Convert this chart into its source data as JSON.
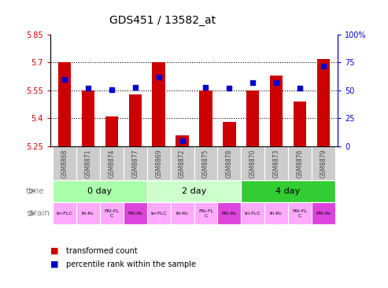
{
  "title": "GDS451 / 13582_at",
  "samples": [
    "GSM8868",
    "GSM8871",
    "GSM8874",
    "GSM8877",
    "GSM8869",
    "GSM8872",
    "GSM8875",
    "GSM8878",
    "GSM8870",
    "GSM8873",
    "GSM8876",
    "GSM8879"
  ],
  "transformed_counts": [
    5.7,
    5.55,
    5.41,
    5.53,
    5.7,
    5.31,
    5.55,
    5.38,
    5.55,
    5.63,
    5.49,
    5.72
  ],
  "percentile_ranks": [
    60,
    52,
    51,
    53,
    62,
    5,
    53,
    52,
    57,
    57,
    52,
    72
  ],
  "ylim_left": [
    5.25,
    5.85
  ],
  "ylim_right": [
    0,
    100
  ],
  "yticks_left": [
    5.25,
    5.4,
    5.55,
    5.7,
    5.85
  ],
  "yticks_right": [
    0,
    25,
    50,
    75,
    100
  ],
  "ytick_labels_right": [
    "0",
    "25",
    "50",
    "75",
    "100%"
  ],
  "hlines": [
    5.4,
    5.55,
    5.7
  ],
  "bar_color": "#cc0000",
  "dot_color": "#0000cc",
  "plot_bg": "#ffffff",
  "time_groups": [
    {
      "label": "0 day",
      "start": 0,
      "end": 3,
      "color": "#aaffaa"
    },
    {
      "label": "2 day",
      "start": 4,
      "end": 7,
      "color": "#ccffcc"
    },
    {
      "label": "4 day",
      "start": 8,
      "end": 11,
      "color": "#33cc33"
    }
  ],
  "strain_labels": [
    "tri-FLC",
    "fri-flc",
    "FRI-FL\nC",
    "FRI-flc",
    "tri-FLC",
    "fri-flc",
    "FRI-FL\nC",
    "FRI-flc",
    "tri-FLC",
    "fri-flc",
    "FRI-FL\nC",
    "FRI-flc"
  ],
  "strain_colors": [
    "#ffaaff",
    "#ffaaff",
    "#ffaaff",
    "#dd44dd",
    "#ffaaff",
    "#ffaaff",
    "#ffaaff",
    "#dd44dd",
    "#ffaaff",
    "#ffaaff",
    "#ffaaff",
    "#dd44dd"
  ],
  "sample_bg": "#cccccc",
  "bg_color": "#ffffff",
  "left_color": "#cc0000",
  "right_color": "#0000cc",
  "label_color": "#888888"
}
